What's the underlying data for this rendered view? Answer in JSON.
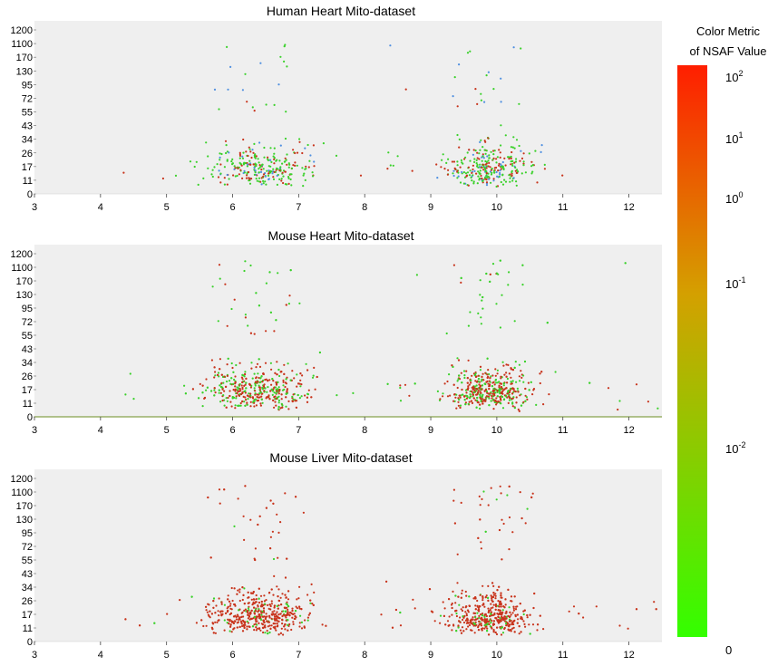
{
  "chart_data": [
    {
      "type": "scatter",
      "title": "Human Heart Mito-dataset",
      "x_ticks": [
        "3",
        "4",
        "5",
        "6",
        "7",
        "8",
        "9",
        "10",
        "11",
        "12"
      ],
      "y_ticks": [
        "0",
        "11",
        "17",
        "26",
        "34",
        "43",
        "55",
        "72",
        "95",
        "130",
        "170",
        "1100",
        "1200"
      ],
      "xlim": [
        3,
        12.5
      ],
      "point_mix": {
        "green": 0.55,
        "red": 0.3,
        "blue": 0.15
      },
      "point_count": 620,
      "grid": false
    },
    {
      "type": "scatter",
      "title": "Mouse Heart Mito-dataset",
      "x_ticks": [
        "3",
        "4",
        "5",
        "6",
        "7",
        "8",
        "9",
        "10",
        "11",
        "12"
      ],
      "y_ticks": [
        "0",
        "11",
        "17",
        "26",
        "34",
        "43",
        "55",
        "72",
        "95",
        "130",
        "170",
        "1100",
        "1200"
      ],
      "xlim": [
        3,
        12.5
      ],
      "point_mix": {
        "green": 0.45,
        "red": 0.55,
        "blue": 0.0
      },
      "point_count": 1150,
      "grid": false
    },
    {
      "type": "scatter",
      "title": "Mouse Liver Mito-dataset",
      "x_ticks": [
        "3",
        "4",
        "5",
        "6",
        "7",
        "8",
        "9",
        "10",
        "11",
        "12"
      ],
      "y_ticks": [
        "0",
        "11",
        "17",
        "26",
        "34",
        "43",
        "55",
        "72",
        "95",
        "130",
        "170",
        "1100",
        "1200"
      ],
      "xlim": [
        3,
        12.5
      ],
      "point_mix": {
        "green": 0.1,
        "red": 0.9,
        "blue": 0.0
      },
      "point_count": 1300,
      "grid": false
    }
  ],
  "colorbar": {
    "title_line1": "Color Metric",
    "title_line2": "of NSAF Value",
    "labels": [
      {
        "base": "10",
        "exp": "2"
      },
      {
        "base": "10",
        "exp": "1"
      },
      {
        "base": "10",
        "exp": "0"
      },
      {
        "base": "10",
        "exp": "-1"
      },
      {
        "base": "10",
        "exp": "-2"
      },
      {
        "base": "0",
        "exp": ""
      }
    ],
    "colors": {
      "top": "#ff1e00",
      "mid": "#d4a000",
      "bottom": "#33ff00"
    }
  },
  "colors": {
    "panel_bg": "#efefef",
    "green": "#3ad12a",
    "red": "#c8341c",
    "blue": "#4f8fe0",
    "axis_line": "#6b8e23"
  }
}
